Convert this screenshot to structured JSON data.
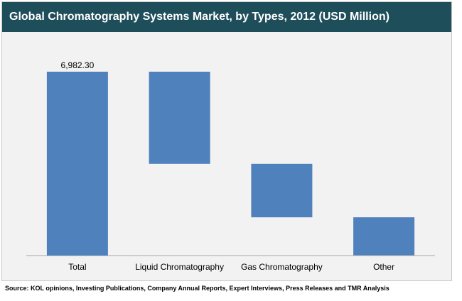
{
  "chart_data": {
    "type": "bar",
    "subtype": "waterfall",
    "title": "Global Chromatography Systems Market, by Types, 2012 (USD Million)",
    "categories": [
      "Total",
      "Liquid Chromatography",
      "Gas Chromatography",
      "Other"
    ],
    "series": [
      {
        "values": [
          6982.3,
          3500,
          2030,
          1440
        ]
      }
    ],
    "data_labels": [
      "6,982.30",
      "",
      "",
      ""
    ],
    "ylim": [
      0,
      6982.3
    ],
    "xlabel": "",
    "ylabel": "",
    "grid": false,
    "legend": "none",
    "colors": {
      "bar": "#4f81bd",
      "title_bg": "#1f4e5b",
      "plot_bg": "#f2f2f2"
    }
  },
  "source": "Source: KOL opinions, Investing Publications, Company Annual Reports, Expert Interviews, Press Releases and TMR Analysis"
}
